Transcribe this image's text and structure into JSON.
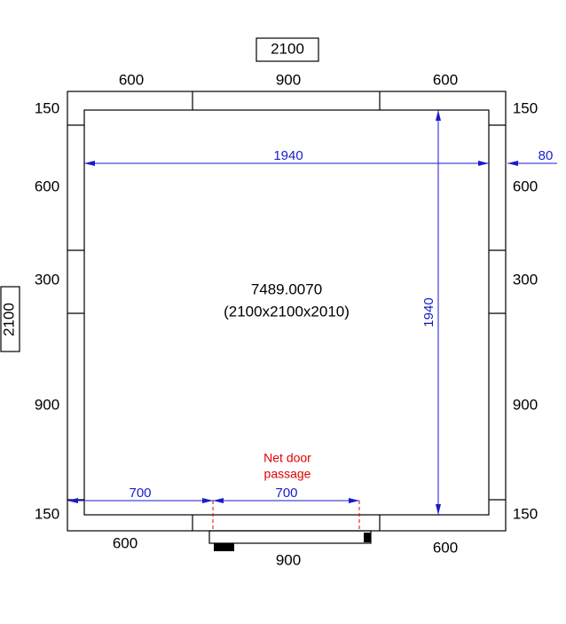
{
  "title_box": "2100",
  "side_box": "2100",
  "top_labels": [
    "600",
    "900",
    "600"
  ],
  "left_labels": [
    "150",
    "600",
    "300",
    "900",
    "150"
  ],
  "right_labels": [
    "150",
    "600",
    "300",
    "900",
    "150"
  ],
  "bottom_labels": [
    "600",
    "900",
    "600"
  ],
  "center": {
    "code": "7489.0070",
    "size": "(2100x2100x2010)"
  },
  "dimensions": {
    "inner_width": "1940",
    "inner_height": "1940",
    "wall_offset": "80",
    "door_offset": "700",
    "door_width": "700"
  },
  "door_note": [
    "Net door",
    "passage"
  ]
}
